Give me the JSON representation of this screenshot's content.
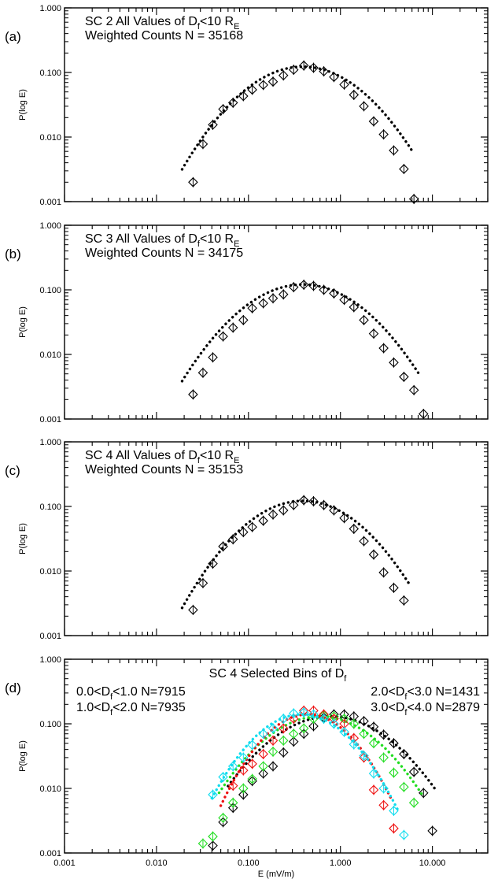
{
  "figure": {
    "xlabel": "E (mV/m)",
    "ylabel": "P(log E)",
    "x_tick_labels": [
      "0.001",
      "0.010",
      "0.100",
      "1.000",
      "10.000"
    ],
    "y_tick_labels": [
      "0.001",
      "0.010",
      "0.100",
      "1.000"
    ]
  },
  "panels": [
    {
      "letter": "(a)",
      "title_prefix": "SC 2 All Values of D",
      "title_sub": "f",
      "title_suffix": "<10 R",
      "title_sub2": "E",
      "counts_label": "Weighted Counts N = 35168"
    },
    {
      "letter": "(b)",
      "title_prefix": "SC 3 All Values of D",
      "title_sub": "f",
      "title_suffix": "<10 R",
      "title_sub2": "E",
      "counts_label": "Weighted Counts N = 34175"
    },
    {
      "letter": "(c)",
      "title_prefix": "SC 4 All Values of D",
      "title_sub": "f",
      "title_suffix": "<10 R",
      "title_sub2": "E",
      "counts_label": "Weighted Counts N = 35153"
    },
    {
      "letter": "(d)",
      "title_prefix": "SC 4 Selected Bins of D",
      "title_sub": "f"
    }
  ],
  "legend_d": [
    {
      "pre": "0.0<D",
      "sub": "f",
      "post": "<1.0",
      "n": "N=7915",
      "color": "#000000"
    },
    {
      "pre": "1.0<D",
      "sub": "f",
      "post": "<2.0",
      "n": "N=7935",
      "color": "#22dd22"
    },
    {
      "pre": "2.0<D",
      "sub": "f",
      "post": "<3.0",
      "n": "N=1431",
      "color": "#ee1111"
    },
    {
      "pre": "3.0<D",
      "sub": "f",
      "post": "<4.0",
      "n": "N=2879",
      "color": "#11ddee"
    }
  ],
  "chart_data": [
    {
      "type": "scatter",
      "panel": "(a)",
      "xscale": "log",
      "yscale": "log",
      "xlim": [
        0.001,
        40
      ],
      "ylim": [
        0.001,
        1.0
      ],
      "xlabel": "",
      "ylabel": "P(log E)",
      "series": [
        {
          "color": "#000000",
          "x": [
            0.025,
            0.032,
            0.041,
            0.053,
            0.068,
            0.088,
            0.11,
            0.145,
            0.185,
            0.24,
            0.31,
            0.4,
            0.51,
            0.66,
            0.85,
            1.1,
            1.4,
            1.8,
            2.3,
            2.95,
            3.8,
            4.9,
            6.3
          ],
          "y": [
            0.002,
            0.0078,
            0.0155,
            0.027,
            0.034,
            0.043,
            0.054,
            0.064,
            0.072,
            0.09,
            0.11,
            0.128,
            0.118,
            0.104,
            0.085,
            0.065,
            0.045,
            0.03,
            0.0175,
            0.011,
            0.0062,
            0.0032,
            0.0011
          ]
        }
      ],
      "fit": {
        "peak_x": 0.39,
        "peak_y": 0.123,
        "sigma_log10": 0.485,
        "x_range": [
          0.019,
          6.2
        ],
        "color": "#000000"
      }
    },
    {
      "type": "scatter",
      "panel": "(b)",
      "xscale": "log",
      "yscale": "log",
      "xlim": [
        0.001,
        40
      ],
      "ylim": [
        0.001,
        1.0
      ],
      "xlabel": "",
      "ylabel": "P(log E)",
      "series": [
        {
          "color": "#000000",
          "x": [
            0.025,
            0.032,
            0.041,
            0.053,
            0.068,
            0.088,
            0.11,
            0.145,
            0.185,
            0.24,
            0.31,
            0.4,
            0.51,
            0.66,
            0.85,
            1.1,
            1.4,
            1.8,
            2.3,
            2.95,
            3.8,
            4.9,
            6.3,
            8.0
          ],
          "y": [
            0.0024,
            0.0052,
            0.009,
            0.019,
            0.026,
            0.034,
            0.052,
            0.062,
            0.074,
            0.085,
            0.11,
            0.12,
            0.115,
            0.1,
            0.088,
            0.07,
            0.054,
            0.034,
            0.021,
            0.0125,
            0.0075,
            0.0045,
            0.0028,
            0.0012
          ]
        }
      ],
      "fit": {
        "peak_x": 0.39,
        "peak_y": 0.121,
        "sigma_log10": 0.5,
        "x_range": [
          0.019,
          7.0
        ],
        "color": "#000000"
      }
    },
    {
      "type": "scatter",
      "panel": "(c)",
      "xscale": "log",
      "yscale": "log",
      "xlim": [
        0.001,
        40
      ],
      "ylim": [
        0.001,
        1.0
      ],
      "xlabel": "",
      "ylabel": "P(log E)",
      "series": [
        {
          "color": "#000000",
          "x": [
            0.025,
            0.032,
            0.041,
            0.053,
            0.068,
            0.088,
            0.11,
            0.145,
            0.185,
            0.24,
            0.31,
            0.4,
            0.51,
            0.66,
            0.85,
            1.1,
            1.4,
            1.8,
            2.3,
            2.95,
            3.8,
            4.9
          ],
          "y": [
            0.0025,
            0.0065,
            0.013,
            0.024,
            0.031,
            0.04,
            0.048,
            0.06,
            0.075,
            0.087,
            0.105,
            0.125,
            0.12,
            0.105,
            0.087,
            0.066,
            0.045,
            0.029,
            0.018,
            0.0095,
            0.0055,
            0.0035
          ]
        }
      ],
      "fit": {
        "peak_x": 0.39,
        "peak_y": 0.122,
        "sigma_log10": 0.475,
        "x_range": [
          0.019,
          5.8
        ],
        "color": "#000000"
      }
    },
    {
      "type": "scatter",
      "panel": "(d)",
      "xscale": "log",
      "yscale": "log",
      "xlim": [
        0.001,
        40
      ],
      "ylim": [
        0.001,
        1.0
      ],
      "xlabel": "E (mV/m)",
      "ylabel": "P(log E)",
      "series": [
        {
          "name": "0.0<Df<1.0 N=7915",
          "color": "#000000",
          "x": [
            0.041,
            0.053,
            0.068,
            0.088,
            0.11,
            0.145,
            0.185,
            0.24,
            0.31,
            0.4,
            0.51,
            0.66,
            0.85,
            1.1,
            1.4,
            1.8,
            2.3,
            2.95,
            3.8,
            4.9,
            6.3,
            8.0,
            10.0
          ],
          "y": [
            0.0013,
            0.003,
            0.005,
            0.008,
            0.013,
            0.017,
            0.022,
            0.036,
            0.053,
            0.07,
            0.092,
            0.125,
            0.14,
            0.14,
            0.13,
            0.11,
            0.09,
            0.068,
            0.05,
            0.034,
            0.018,
            0.0085,
            0.0022
          ],
          "fit": {
            "peak_x": 0.78,
            "peak_y": 0.13,
            "sigma_log10": 0.5,
            "x_range": [
              0.06,
              11.0
            ]
          }
        },
        {
          "name": "1.0<Df<2.0 N=7935",
          "color": "#22dd22",
          "x": [
            0.032,
            0.041,
            0.053,
            0.068,
            0.088,
            0.11,
            0.145,
            0.185,
            0.24,
            0.31,
            0.4,
            0.51,
            0.66,
            0.85,
            1.1,
            1.4,
            1.8,
            2.3,
            2.95,
            3.8,
            4.9,
            6.3
          ],
          "y": [
            0.0014,
            0.0018,
            0.0035,
            0.006,
            0.01,
            0.014,
            0.022,
            0.037,
            0.055,
            0.07,
            0.085,
            0.12,
            0.135,
            0.13,
            0.12,
            0.1,
            0.07,
            0.05,
            0.03,
            0.0175,
            0.0105,
            0.006
          ],
          "fit": {
            "peak_x": 0.6,
            "peak_y": 0.13,
            "sigma_log10": 0.47,
            "x_range": [
              0.048,
              8.0
            ]
          }
        },
        {
          "name": "2.0<Df<3.0 N=1431",
          "color": "#ee1111",
          "x": [
            0.068,
            0.088,
            0.11,
            0.145,
            0.185,
            0.24,
            0.31,
            0.4,
            0.51,
            0.66,
            0.85,
            1.1,
            1.4,
            1.8,
            2.3,
            2.95,
            3.8
          ],
          "y": [
            0.011,
            0.019,
            0.024,
            0.034,
            0.055,
            0.085,
            0.12,
            0.16,
            0.16,
            0.14,
            0.12,
            0.1,
            0.06,
            0.03,
            0.0095,
            0.0055,
            0.0024
          ],
          "fit": {
            "peak_x": 0.44,
            "peak_y": 0.14,
            "sigma_log10": 0.37,
            "x_range": [
              0.05,
              3.6
            ]
          }
        },
        {
          "name": "3.0<Df<4.0 N=2879",
          "color": "#11ddee",
          "x": [
            0.041,
            0.053,
            0.068,
            0.088,
            0.11,
            0.145,
            0.185,
            0.24,
            0.31,
            0.4,
            0.51,
            0.66,
            0.85,
            1.1,
            1.4,
            1.8,
            2.3,
            2.95,
            3.8,
            4.9
          ],
          "y": [
            0.008,
            0.015,
            0.022,
            0.03,
            0.047,
            0.07,
            0.085,
            0.12,
            0.145,
            0.15,
            0.14,
            0.12,
            0.1,
            0.075,
            0.048,
            0.032,
            0.017,
            0.01,
            0.0045,
            0.0019
          ],
          "fit": {
            "peak_x": 0.38,
            "peak_y": 0.14,
            "sigma_log10": 0.4,
            "x_range": [
              0.04,
              4.2
            ]
          }
        }
      ]
    }
  ]
}
